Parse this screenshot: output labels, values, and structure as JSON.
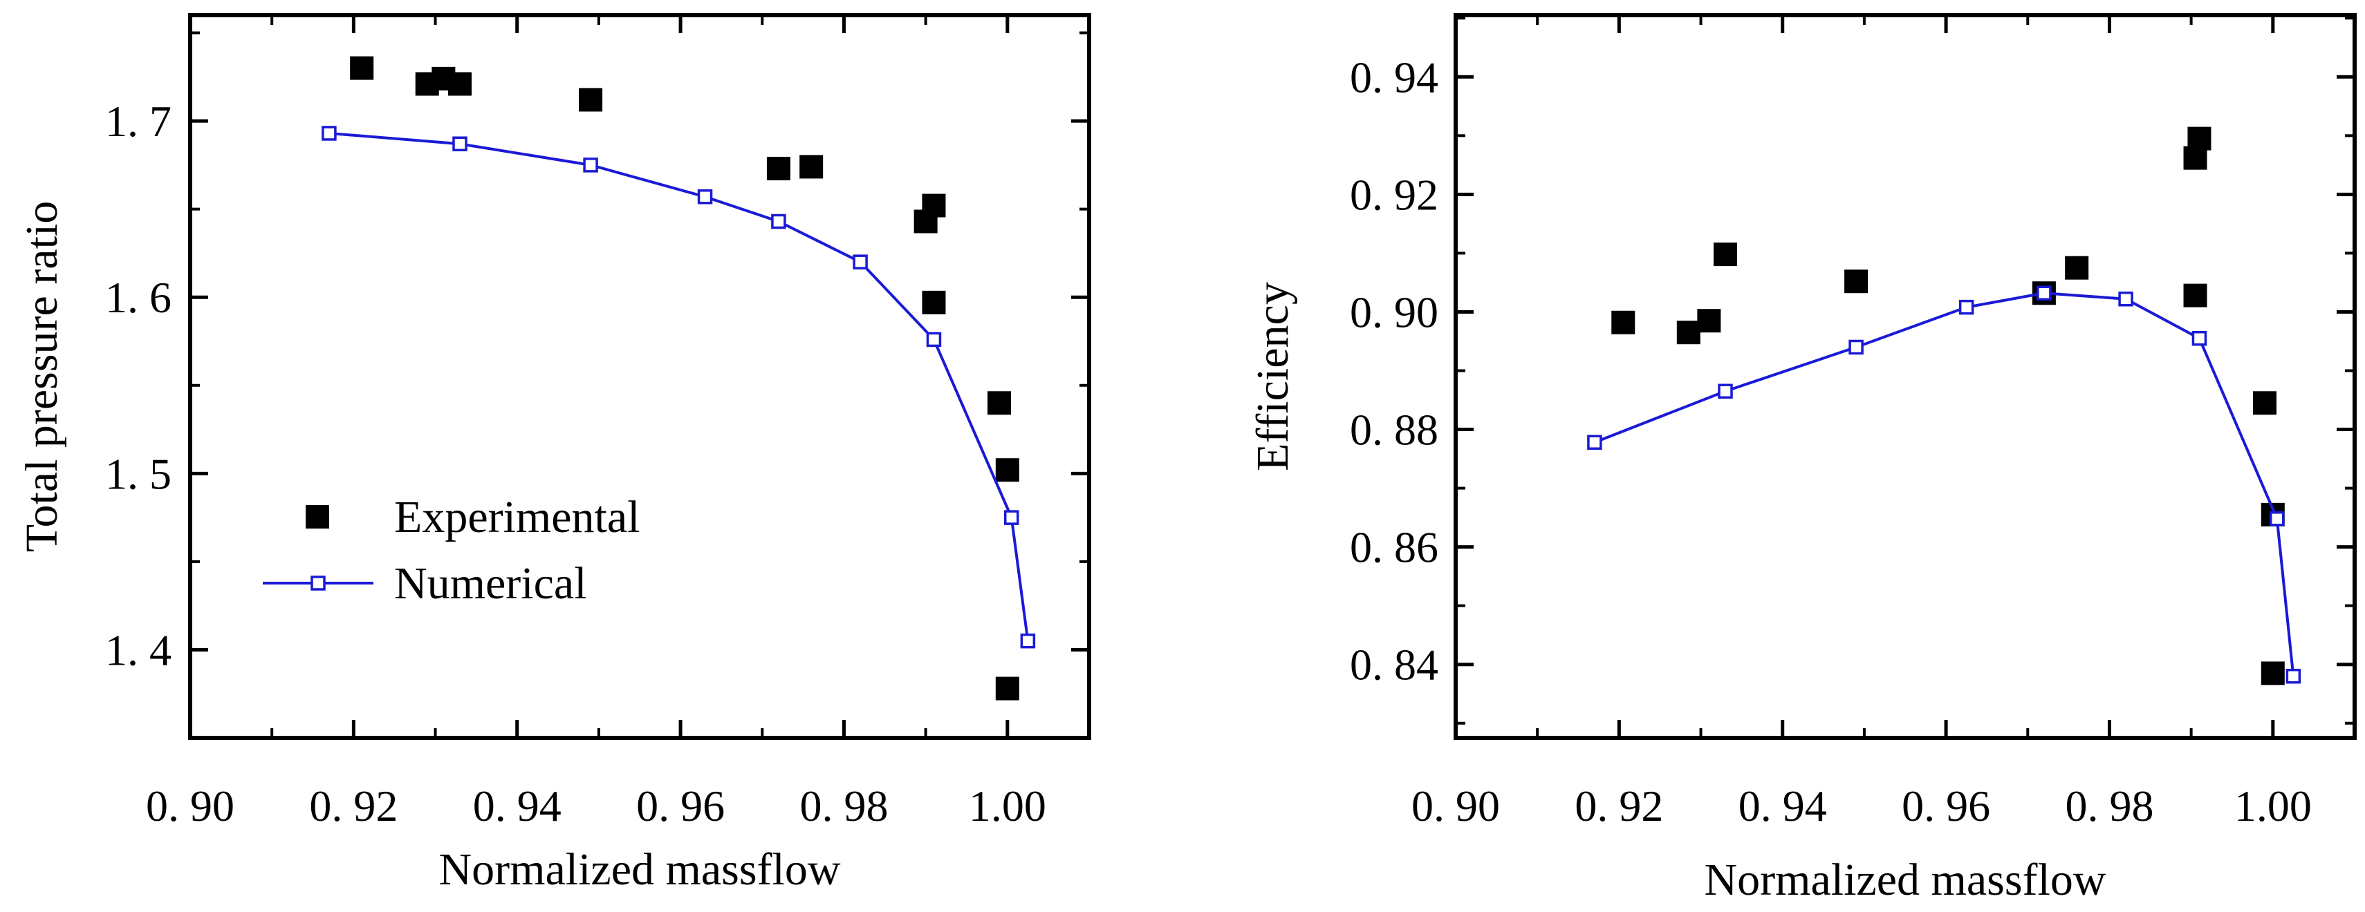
{
  "charts": [
    {
      "type": "scatter+line",
      "title": "",
      "xlabel": "Normalized massflow",
      "ylabel": "Total pressure ratio",
      "xlim": [
        0.9,
        1.01
      ],
      "ylim": [
        1.35,
        1.76
      ],
      "xticks": [
        0.9,
        0.92,
        0.94,
        0.96,
        0.98,
        1.0
      ],
      "xtick_labels": [
        "0. 90",
        "0. 92",
        "0. 94",
        "0. 96",
        "0. 98",
        "1.00"
      ],
      "yticks": [
        1.4,
        1.5,
        1.6,
        1.7
      ],
      "ytick_labels": [
        "1. 4",
        "1. 5",
        "1. 6",
        "1. 7"
      ],
      "legend": {
        "position": "lower-left",
        "entries": [
          {
            "name": "Experimental",
            "marker": "filled-square"
          },
          {
            "name": "Numerical",
            "marker": "open-square-line"
          }
        ]
      },
      "series": [
        {
          "name": "Experimental",
          "style": "filled-square",
          "color": "#000000",
          "x": [
            0.921,
            0.929,
            0.931,
            0.933,
            0.949,
            0.972,
            0.976,
            0.99,
            0.991,
            0.991,
            0.999,
            1.0,
            1.0
          ],
          "y": [
            1.73,
            1.721,
            1.724,
            1.721,
            1.712,
            1.673,
            1.674,
            1.643,
            1.652,
            1.597,
            1.54,
            1.502,
            1.378
          ]
        },
        {
          "name": "Numerical",
          "style": "line-open-square",
          "color": "#1a1ad6",
          "x": [
            0.917,
            0.933,
            0.949,
            0.963,
            0.972,
            0.982,
            0.991,
            1.0005,
            1.0025
          ],
          "y": [
            1.693,
            1.687,
            1.675,
            1.657,
            1.643,
            1.62,
            1.576,
            1.475,
            1.405
          ]
        }
      ]
    },
    {
      "type": "scatter+line",
      "title": "",
      "xlabel": "Normalized massflow",
      "ylabel": "Efficiency",
      "xlim": [
        0.9,
        1.01
      ],
      "ylim": [
        0.8275,
        0.9505
      ],
      "xticks": [
        0.9,
        0.92,
        0.94,
        0.96,
        0.98,
        1.0
      ],
      "xtick_labels": [
        "0. 90",
        "0. 92",
        "0. 94",
        "0. 96",
        "0. 98",
        "1.00"
      ],
      "yticks": [
        0.84,
        0.86,
        0.88,
        0.9,
        0.92,
        0.94
      ],
      "ytick_labels": [
        "0. 84",
        "0. 86",
        "0. 88",
        "0. 90",
        "0. 92",
        "0. 94"
      ],
      "legend": null,
      "series": [
        {
          "name": "Experimental",
          "style": "filled-square",
          "color": "#000000",
          "x": [
            0.9205,
            0.9285,
            0.931,
            0.933,
            0.949,
            0.972,
            0.976,
            0.9905,
            0.991,
            0.9905,
            0.999,
            1.0,
            1.0
          ],
          "y": [
            0.8982,
            0.8965,
            0.8985,
            0.9098,
            0.9052,
            0.9032,
            0.9075,
            0.9262,
            0.9295,
            0.9028,
            0.8845,
            0.8655,
            0.8385
          ]
        },
        {
          "name": "Numerical",
          "style": "line-open-square",
          "color": "#1a1ad6",
          "x": [
            0.917,
            0.933,
            0.949,
            0.9625,
            0.972,
            0.982,
            0.991,
            1.0005,
            1.0025
          ],
          "y": [
            0.8778,
            0.8865,
            0.894,
            0.9008,
            0.9032,
            0.9022,
            0.8955,
            0.8648,
            0.838
          ]
        }
      ]
    }
  ]
}
